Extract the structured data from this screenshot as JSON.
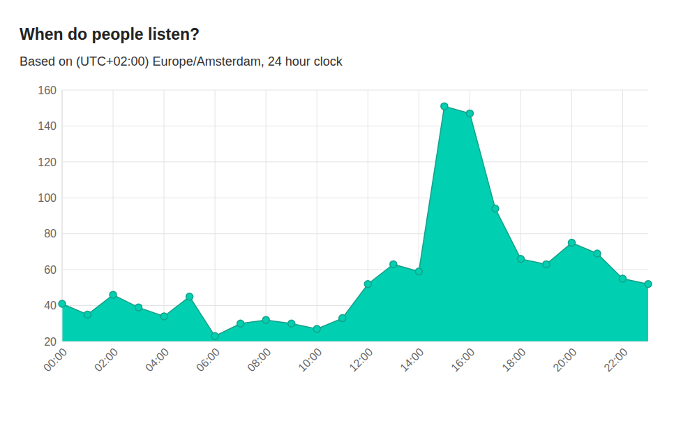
{
  "chart_data": {
    "type": "area",
    "title": "When do people listen?",
    "subtitle": "Based on (UTC+02:00) Europe/Amsterdam, 24 hour clock",
    "categories": [
      "00:00",
      null,
      "02:00",
      null,
      "04:00",
      null,
      "06:00",
      null,
      "08:00",
      null,
      "10:00",
      null,
      "12:00",
      null,
      "14:00",
      null,
      "16:00",
      null,
      "18:00",
      null,
      "20:00",
      null,
      "22:00",
      null
    ],
    "values": [
      41,
      35,
      46,
      39,
      34,
      45,
      23,
      30,
      32,
      30,
      27,
      33,
      52,
      63,
      59,
      151,
      147,
      94,
      66,
      63,
      75,
      69,
      55,
      52
    ],
    "color": "#00cfb1",
    "ylim": [
      20,
      160
    ],
    "yticks": [
      20,
      40,
      60,
      80,
      100,
      120,
      140,
      160
    ],
    "grid": true,
    "marker": "circle"
  }
}
